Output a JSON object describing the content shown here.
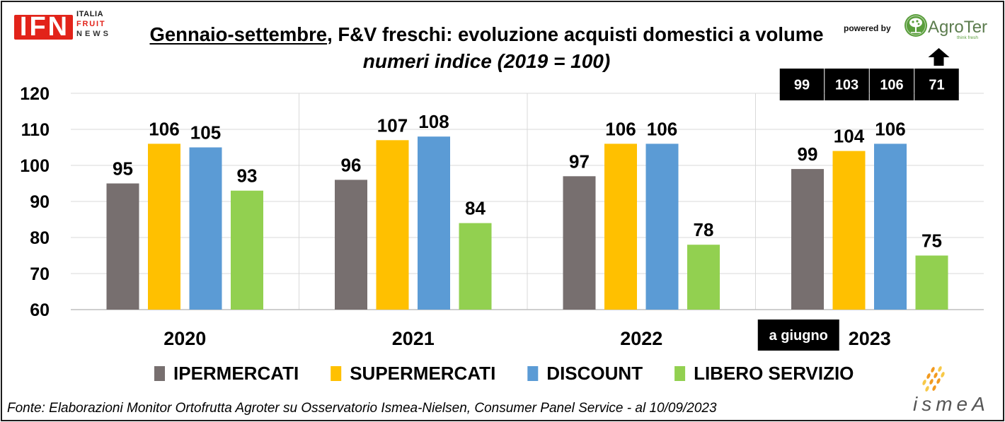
{
  "header": {
    "ifn_logo": {
      "mark": "IFN",
      "line1": "ITALIA",
      "line2": "FRUIT",
      "line3": "NEWS"
    },
    "powered_by": "powered by",
    "agroter_logo": {
      "name": "AgroTer",
      "tagline": "think fresh",
      "icon": "tree-icon"
    }
  },
  "chart_data": {
    "type": "bar",
    "title": {
      "underlined": "Gennaio-settembre",
      "rest": ", F&V freschi: evoluzione acquisti domestici a volume"
    },
    "subtitle": "numeri indice (2019 = 100)",
    "categories": [
      "2020",
      "2021",
      "2022",
      "2023"
    ],
    "series": [
      {
        "name": "IPERMERCATI",
        "color": "#776F6F",
        "values": [
          95,
          96,
          97,
          99
        ]
      },
      {
        "name": "SUPERMERCATI",
        "color": "#FFC000",
        "values": [
          106,
          107,
          106,
          104
        ]
      },
      {
        "name": "DISCOUNT",
        "color": "#5B9BD5",
        "values": [
          105,
          108,
          106,
          106
        ]
      },
      {
        "name": "LIBERO SERVIZIO",
        "color": "#92D050",
        "values": [
          93,
          84,
          78,
          75
        ]
      }
    ],
    "ylim": [
      60,
      120
    ],
    "yticks": [
      60,
      70,
      80,
      90,
      100,
      110,
      120
    ],
    "grid": true,
    "legend": "bottom",
    "annotations": {
      "category_note": "a giugno",
      "top_boxes": [
        "99",
        "103",
        "106",
        "71"
      ],
      "arrow_icon": "up-arrow-icon"
    }
  },
  "footer": {
    "source": "Fonte: Elaborazioni Monitor Ortofrutta Agroter su Osservatorio Ismea-Nielsen, Consumer Panel Service - al 10/09/2023"
  },
  "ismea_logo": {
    "name": "ismeA",
    "icon": "ismea-dots-icon"
  },
  "colors": {
    "ifn_red": "#E2231A",
    "agroter_green": "#5A9E3C",
    "annotation_box": "#000000",
    "gridline": "#D9D9D9"
  }
}
